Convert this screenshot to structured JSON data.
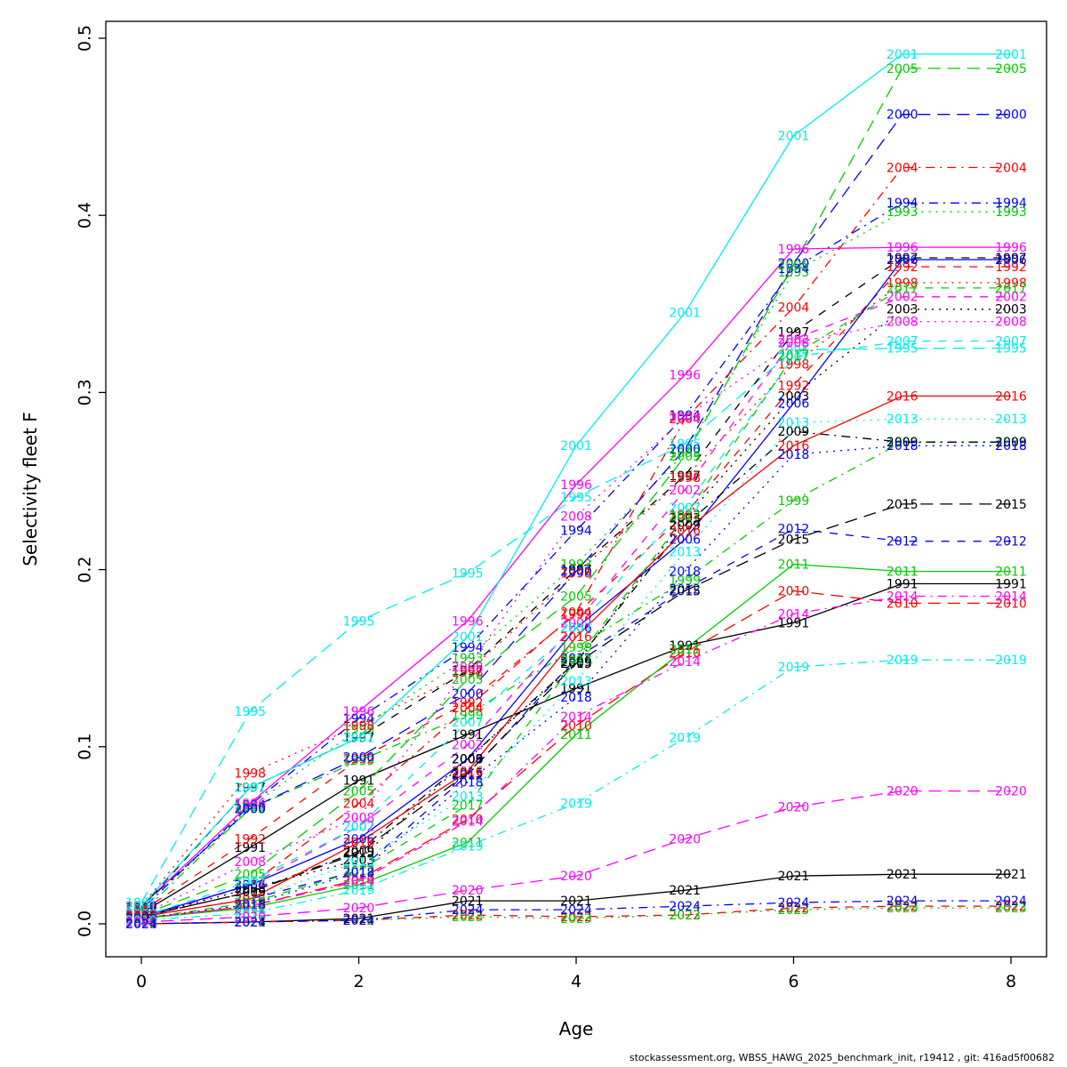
{
  "figure": {
    "xlabel": "Age",
    "ylabel": "Selectivity fleet F",
    "footer": "stockassessment.org, WBSS_HAWG_2025_benchmark_init, r19412 , git: 416ad5f00682"
  },
  "chart_data": {
    "type": "line",
    "title": "",
    "xlabel": "Age",
    "ylabel": "Selectivity fleet F",
    "x": [
      0,
      1,
      2,
      3,
      4,
      5,
      6,
      7,
      8
    ],
    "x_ticks": [
      0,
      2,
      4,
      6,
      8
    ],
    "y_ticks": [
      "0.0",
      "0.1",
      "0.2",
      "0.3",
      "0.4",
      "0.5"
    ],
    "xlim": [
      -0.33,
      8.33
    ],
    "ylim": [
      0,
      0.5
    ],
    "grid": false,
    "legend": "labels-on-points: each point labelled with its year",
    "palette": {
      "1": "#000000",
      "2": "#ff0000",
      "3": "#00cd00",
      "4": "#0000ff",
      "5": "#00eeee",
      "6": "#ff00ff"
    },
    "dash_styles": {
      "solid": "",
      "dashed": "9,9",
      "dotted": "2,6",
      "dotdash": "2,6,10,6",
      "longdash": "14,8"
    },
    "series": [
      {
        "name": "1991",
        "color": "#000000",
        "dash": "solid",
        "values": [
          0.006,
          0.043,
          0.081,
          0.107,
          0.133,
          0.157,
          0.17,
          0.192,
          0.192
        ]
      },
      {
        "name": "1992",
        "color": "#ff0000",
        "dash": "dashed",
        "values": [
          0.007,
          0.048,
          0.093,
          0.125,
          0.175,
          0.231,
          0.304,
          0.371,
          0.371
        ]
      },
      {
        "name": "1993",
        "color": "#00cd00",
        "dash": "dotted",
        "values": [
          0.008,
          0.066,
          0.11,
          0.15,
          0.203,
          0.266,
          0.368,
          0.402,
          0.402
        ]
      },
      {
        "name": "1994",
        "color": "#0000ff",
        "dash": "dotdash",
        "values": [
          0.008,
          0.067,
          0.116,
          0.156,
          0.222,
          0.287,
          0.37,
          0.407,
          0.407
        ]
      },
      {
        "name": "1995",
        "color": "#00eeee",
        "dash": "longdash",
        "values": [
          0.012,
          0.12,
          0.171,
          0.198,
          0.241,
          0.271,
          0.324,
          0.325,
          0.325
        ]
      },
      {
        "name": "1996",
        "color": "#ff00ff",
        "dash": "solid",
        "values": [
          0.01,
          0.068,
          0.12,
          0.171,
          0.248,
          0.31,
          0.381,
          0.382,
          0.382
        ]
      },
      {
        "name": "1997",
        "color": "#000000",
        "dash": "dashed",
        "values": [
          0.009,
          0.077,
          0.105,
          0.143,
          0.2,
          0.253,
          0.334,
          0.376,
          0.376
        ]
      },
      {
        "name": "1998",
        "color": "#ff0000",
        "dash": "dotted",
        "values": [
          0.01,
          0.085,
          0.112,
          0.142,
          0.198,
          0.252,
          0.316,
          0.362,
          0.362
        ]
      },
      {
        "name": "1999",
        "color": "#00cd00",
        "dash": "dotdash",
        "values": [
          0.006,
          0.065,
          0.092,
          0.118,
          0.156,
          0.194,
          0.239,
          0.272,
          0.272
        ]
      },
      {
        "name": "2000",
        "color": "#0000ff",
        "dash": "longdash",
        "values": [
          0.01,
          0.065,
          0.094,
          0.13,
          0.199,
          0.268,
          0.373,
          0.457,
          0.457
        ]
      },
      {
        "name": "2001",
        "color": "#00eeee",
        "dash": "solid",
        "values": [
          0.01,
          0.077,
          0.105,
          0.162,
          0.27,
          0.345,
          0.445,
          0.491,
          0.491
        ]
      },
      {
        "name": "2002",
        "color": "#ff00ff",
        "dash": "dashed",
        "values": [
          0.003,
          0.022,
          0.055,
          0.101,
          0.17,
          0.245,
          0.33,
          0.354,
          0.354
        ]
      },
      {
        "name": "2003",
        "color": "#000000",
        "dash": "dotted",
        "values": [
          0.004,
          0.02,
          0.036,
          0.093,
          0.147,
          0.229,
          0.298,
          0.347,
          0.347
        ]
      },
      {
        "name": "2004",
        "color": "#ff0000",
        "dash": "dotdash",
        "values": [
          0.004,
          0.022,
          0.068,
          0.122,
          0.176,
          0.285,
          0.348,
          0.427,
          0.427
        ]
      },
      {
        "name": "2005",
        "color": "#00cd00",
        "dash": "longdash",
        "values": [
          0.005,
          0.028,
          0.075,
          0.138,
          0.185,
          0.264,
          0.372,
          0.483,
          0.483
        ]
      },
      {
        "name": "2006",
        "color": "#0000ff",
        "dash": "solid",
        "values": [
          0.004,
          0.022,
          0.048,
          0.093,
          0.167,
          0.217,
          0.294,
          0.375,
          0.375
        ]
      },
      {
        "name": "2007",
        "color": "#00eeee",
        "dash": "dashed",
        "values": [
          0.004,
          0.024,
          0.055,
          0.114,
          0.167,
          0.235,
          0.32,
          0.329,
          0.329
        ]
      },
      {
        "name": "2008",
        "color": "#ff00ff",
        "dash": "dotted",
        "values": [
          0.005,
          0.035,
          0.06,
          0.145,
          0.23,
          0.286,
          0.328,
          0.34,
          0.34
        ]
      },
      {
        "name": "2009",
        "color": "#000000",
        "dash": "dotdash",
        "values": [
          0.004,
          0.018,
          0.041,
          0.093,
          0.148,
          0.225,
          0.278,
          0.272,
          0.272
        ]
      },
      {
        "name": "2010",
        "color": "#ff0000",
        "dash": "longdash",
        "values": [
          0.003,
          0.01,
          0.025,
          0.059,
          0.112,
          0.153,
          0.188,
          0.181,
          0.181
        ]
      },
      {
        "name": "2011",
        "color": "#00cd00",
        "dash": "solid",
        "values": [
          0.003,
          0.009,
          0.022,
          0.046,
          0.107,
          0.155,
          0.203,
          0.199,
          0.199
        ]
      },
      {
        "name": "2012",
        "color": "#0000ff",
        "dash": "dashed",
        "values": [
          0.004,
          0.014,
          0.03,
          0.084,
          0.15,
          0.189,
          0.223,
          0.216,
          0.216
        ]
      },
      {
        "name": "2013",
        "color": "#00eeee",
        "dash": "dotted",
        "values": [
          0.004,
          0.014,
          0.035,
          0.072,
          0.137,
          0.21,
          0.283,
          0.285,
          0.285
        ]
      },
      {
        "name": "2014",
        "color": "#ff00ff",
        "dash": "dotdash",
        "values": [
          0.003,
          0.01,
          0.024,
          0.058,
          0.117,
          0.148,
          0.175,
          0.185,
          0.185
        ]
      },
      {
        "name": "2015",
        "color": "#000000",
        "dash": "longdash",
        "values": [
          0.004,
          0.018,
          0.04,
          0.085,
          0.147,
          0.188,
          0.217,
          0.237,
          0.237
        ]
      },
      {
        "name": "2016",
        "color": "#ff0000",
        "dash": "solid",
        "values": [
          0.004,
          0.014,
          0.046,
          0.086,
          0.162,
          0.222,
          0.27,
          0.298,
          0.298
        ]
      },
      {
        "name": "2017",
        "color": "#00cd00",
        "dash": "dashed",
        "values": [
          0.003,
          0.012,
          0.03,
          0.067,
          0.149,
          0.23,
          0.321,
          0.359,
          0.359
        ]
      },
      {
        "name": "2018",
        "color": "#0000ff",
        "dash": "dotted",
        "values": [
          0.003,
          0.011,
          0.029,
          0.08,
          0.128,
          0.199,
          0.265,
          0.27,
          0.27
        ]
      },
      {
        "name": "2019",
        "color": "#00eeee",
        "dash": "dotdash",
        "values": [
          0.002,
          0.006,
          0.019,
          0.044,
          0.068,
          0.105,
          0.145,
          0.149,
          0.149
        ]
      },
      {
        "name": "2020",
        "color": "#ff00ff",
        "dash": "longdash",
        "values": [
          0.001,
          0.004,
          0.009,
          0.019,
          0.027,
          0.048,
          0.066,
          0.075,
          0.075
        ]
      },
      {
        "name": "2021",
        "color": "#000000",
        "dash": "solid",
        "values": [
          0.0,
          0.001,
          0.003,
          0.013,
          0.013,
          0.019,
          0.027,
          0.028,
          0.028
        ]
      },
      {
        "name": "2022",
        "color": "#ff0000",
        "dash": "dashed",
        "values": [
          0.0,
          0.001,
          0.002,
          0.005,
          0.004,
          0.005,
          0.009,
          0.01,
          0.01
        ]
      },
      {
        "name": "2023",
        "color": "#00cd00",
        "dash": "dotted",
        "values": [
          0.0,
          0.001,
          0.002,
          0.004,
          0.003,
          0.005,
          0.008,
          0.009,
          0.009
        ]
      },
      {
        "name": "2024",
        "color": "#0000ff",
        "dash": "dotdash",
        "values": [
          0.0,
          0.001,
          0.002,
          0.008,
          0.008,
          0.01,
          0.012,
          0.013,
          0.013
        ]
      }
    ]
  }
}
